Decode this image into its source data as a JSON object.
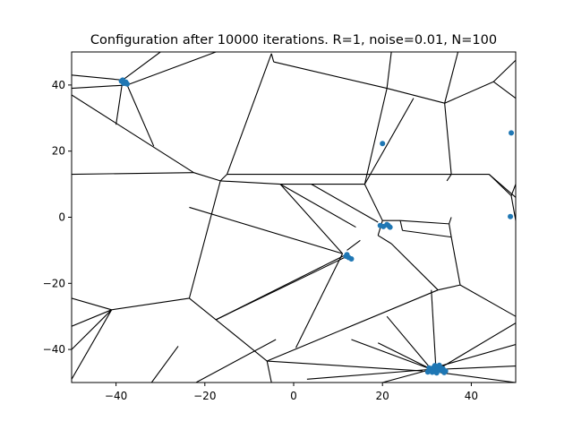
{
  "chart_data": {
    "type": "scatter",
    "title": "Configuration after 10000 iterations. R=1, noise=0.01, N=100",
    "xlabel": "",
    "ylabel": "",
    "xlim": [
      -50,
      50
    ],
    "ylim": [
      -50,
      50
    ],
    "xticks": [
      -40,
      -20,
      0,
      20,
      40
    ],
    "yticks": [
      -40,
      -20,
      0,
      20,
      40
    ],
    "grid": false,
    "point_color": "#1f77b4",
    "edge_color": "#000000",
    "points": [
      {
        "x": -38.8,
        "y": 41.2
      },
      {
        "x": -38.3,
        "y": 40.5
      },
      {
        "x": -37.8,
        "y": 40.9
      },
      {
        "x": -38.5,
        "y": 41.5
      },
      {
        "x": -37.5,
        "y": 40.3
      },
      {
        "x": 20.0,
        "y": 22.3
      },
      {
        "x": 49.0,
        "y": 25.5
      },
      {
        "x": 48.8,
        "y": 0.2
      },
      {
        "x": 19.5,
        "y": -2.5
      },
      {
        "x": 20.2,
        "y": -2.8
      },
      {
        "x": 21.0,
        "y": -2.2
      },
      {
        "x": 21.7,
        "y": -3.0
      },
      {
        "x": 21.3,
        "y": -2.5
      },
      {
        "x": 11.8,
        "y": -11.8
      },
      {
        "x": 12.4,
        "y": -12.2
      },
      {
        "x": 13.0,
        "y": -12.6
      },
      {
        "x": 12.0,
        "y": -11.3
      },
      {
        "x": 30.2,
        "y": -46.8
      },
      {
        "x": 30.8,
        "y": -46.2
      },
      {
        "x": 31.5,
        "y": -45.5
      },
      {
        "x": 32.0,
        "y": -46.0
      },
      {
        "x": 32.5,
        "y": -45.2
      },
      {
        "x": 33.0,
        "y": -46.3
      },
      {
        "x": 33.6,
        "y": -45.8
      },
      {
        "x": 34.2,
        "y": -46.5
      },
      {
        "x": 31.2,
        "y": -46.9
      },
      {
        "x": 32.8,
        "y": -44.8
      },
      {
        "x": 30.5,
        "y": -45.6
      },
      {
        "x": 33.9,
        "y": -47.0
      },
      {
        "x": 31.8,
        "y": -44.9
      },
      {
        "x": 32.2,
        "y": -47.1
      }
    ],
    "voronoi_edges": [
      [
        [
          -50,
          43
        ],
        [
          -38.5,
          41.5
        ]
      ],
      [
        [
          -30,
          50
        ],
        [
          -38.5,
          41.5
        ]
      ],
      [
        [
          -17.5,
          50
        ],
        [
          -37.5,
          40
        ]
      ],
      [
        [
          -50,
          39
        ],
        [
          -37.5,
          40
        ]
      ],
      [
        [
          -38.5,
          41.5
        ],
        [
          -37.5,
          40
        ]
      ],
      [
        [
          -38.5,
          41.5
        ],
        [
          -40,
          28
        ]
      ],
      [
        [
          -37.5,
          40
        ],
        [
          -31.5,
          21.5
        ]
      ],
      [
        [
          -50,
          37
        ],
        [
          -22.5,
          13.5
        ]
      ],
      [
        [
          -22.5,
          13.5
        ],
        [
          -50,
          13
        ]
      ],
      [
        [
          -22.5,
          13.5
        ],
        [
          -16.5,
          11
        ]
      ],
      [
        [
          -16.5,
          11
        ],
        [
          -15,
          13
        ]
      ],
      [
        [
          -15,
          13
        ],
        [
          -5,
          49.5
        ]
      ],
      [
        [
          -5,
          49.5
        ],
        [
          -4.5,
          47
        ]
      ],
      [
        [
          -4.5,
          47
        ],
        [
          21,
          39
        ]
      ],
      [
        [
          21,
          39
        ],
        [
          22,
          50
        ]
      ],
      [
        [
          21,
          39
        ],
        [
          34,
          34.5
        ]
      ],
      [
        [
          34,
          34.5
        ],
        [
          37,
          50
        ]
      ],
      [
        [
          34,
          34.5
        ],
        [
          45,
          41
        ]
      ],
      [
        [
          45,
          41
        ],
        [
          50,
          47.5
        ]
      ],
      [
        [
          45,
          41
        ],
        [
          50,
          36
        ]
      ],
      [
        [
          21,
          39
        ],
        [
          16,
          10
        ]
      ],
      [
        [
          16,
          10
        ],
        [
          27,
          36
        ]
      ],
      [
        [
          -15,
          13
        ],
        [
          35.5,
          13
        ]
      ],
      [
        [
          35.5,
          13
        ],
        [
          34,
          34.5
        ]
      ],
      [
        [
          35.5,
          13
        ],
        [
          34.5,
          11
        ]
      ],
      [
        [
          35.5,
          13
        ],
        [
          44,
          13
        ]
      ],
      [
        [
          44,
          13
        ],
        [
          50,
          6
        ]
      ],
      [
        [
          -16.5,
          11
        ],
        [
          -3,
          10
        ]
      ],
      [
        [
          -3,
          10
        ],
        [
          16,
          10
        ]
      ],
      [
        [
          -16.5,
          11
        ],
        [
          -23.5,
          -24.5
        ]
      ],
      [
        [
          -23.5,
          -24.5
        ],
        [
          -41,
          -28
        ]
      ],
      [
        [
          -41,
          -28
        ],
        [
          -50,
          -24.5
        ]
      ],
      [
        [
          -41,
          -28
        ],
        [
          -50,
          -33
        ]
      ],
      [
        [
          -41,
          -28
        ],
        [
          -50,
          -49
        ]
      ],
      [
        [
          -23.5,
          -24.5
        ],
        [
          -17.5,
          -31
        ]
      ],
      [
        [
          -17.5,
          -31
        ],
        [
          -6,
          -43.5
        ]
      ],
      [
        [
          -6,
          -43.5
        ],
        [
          -5,
          -50
        ]
      ],
      [
        [
          -6,
          -43.5
        ],
        [
          29,
          -46.5
        ]
      ],
      [
        [
          -17.5,
          -31
        ],
        [
          11.5,
          -11.5
        ]
      ],
      [
        [
          -23.5,
          3
        ],
        [
          11,
          -11
        ]
      ],
      [
        [
          -3,
          10
        ],
        [
          11,
          -11
        ]
      ],
      [
        [
          -3,
          10
        ],
        [
          14,
          -3
        ]
      ],
      [
        [
          4,
          10
        ],
        [
          19,
          -1.5
        ]
      ],
      [
        [
          16,
          10
        ],
        [
          20,
          -1
        ]
      ],
      [
        [
          20,
          -1
        ],
        [
          24,
          -1
        ]
      ],
      [
        [
          24,
          -1
        ],
        [
          35,
          -2
        ]
      ],
      [
        [
          20,
          -1
        ],
        [
          19,
          -5.5
        ]
      ],
      [
        [
          35.5,
          0
        ],
        [
          35,
          -2
        ]
      ],
      [
        [
          24,
          -1
        ],
        [
          24.5,
          -4
        ]
      ],
      [
        [
          24.5,
          -4
        ],
        [
          35.5,
          -6
        ]
      ],
      [
        [
          35,
          -2
        ],
        [
          35.5,
          -6
        ]
      ],
      [
        [
          35.5,
          -6
        ],
        [
          37.5,
          -20.5
        ]
      ],
      [
        [
          37.5,
          -20.5
        ],
        [
          50,
          -30
        ]
      ],
      [
        [
          44,
          13
        ],
        [
          49,
          6.5
        ]
      ],
      [
        [
          49,
          6.5
        ],
        [
          50,
          10
        ]
      ],
      [
        [
          49,
          6.5
        ],
        [
          50,
          -1
        ]
      ],
      [
        [
          22,
          -8
        ],
        [
          32.5,
          -22
        ]
      ],
      [
        [
          32.5,
          -22
        ],
        [
          37.5,
          -20.5
        ]
      ],
      [
        [
          19,
          -5.5
        ],
        [
          22,
          -8
        ]
      ],
      [
        [
          12,
          -10
        ],
        [
          15,
          -7
        ]
      ],
      [
        [
          11,
          -11
        ],
        [
          0.5,
          -39.5
        ]
      ],
      [
        [
          -17.5,
          -31
        ],
        [
          12.5,
          -11.5
        ]
      ],
      [
        [
          32.5,
          -22
        ],
        [
          -6,
          -43.5
        ]
      ],
      [
        [
          31,
          -22
        ],
        [
          32,
          -45
        ]
      ],
      [
        [
          32.5,
          -46
        ],
        [
          50,
          -32
        ]
      ],
      [
        [
          33,
          -45
        ],
        [
          50,
          -38.5
        ]
      ],
      [
        [
          33,
          -46
        ],
        [
          50,
          -45
        ]
      ],
      [
        [
          33,
          -47
        ],
        [
          50,
          -50
        ]
      ],
      [
        [
          31,
          -46
        ],
        [
          13,
          -37
        ]
      ],
      [
        [
          31,
          -46
        ],
        [
          19,
          -38
        ]
      ],
      [
        [
          31,
          -46
        ],
        [
          21,
          -30
        ]
      ],
      [
        [
          31,
          -46
        ],
        [
          3,
          -49
        ]
      ],
      [
        [
          31,
          -46
        ],
        [
          20,
          -50
        ]
      ],
      [
        [
          -41,
          -28
        ],
        [
          -50,
          -40
        ]
      ],
      [
        [
          -22,
          -50
        ],
        [
          -4,
          -37
        ]
      ],
      [
        [
          -32,
          -50
        ],
        [
          -26,
          -39
        ]
      ]
    ]
  }
}
